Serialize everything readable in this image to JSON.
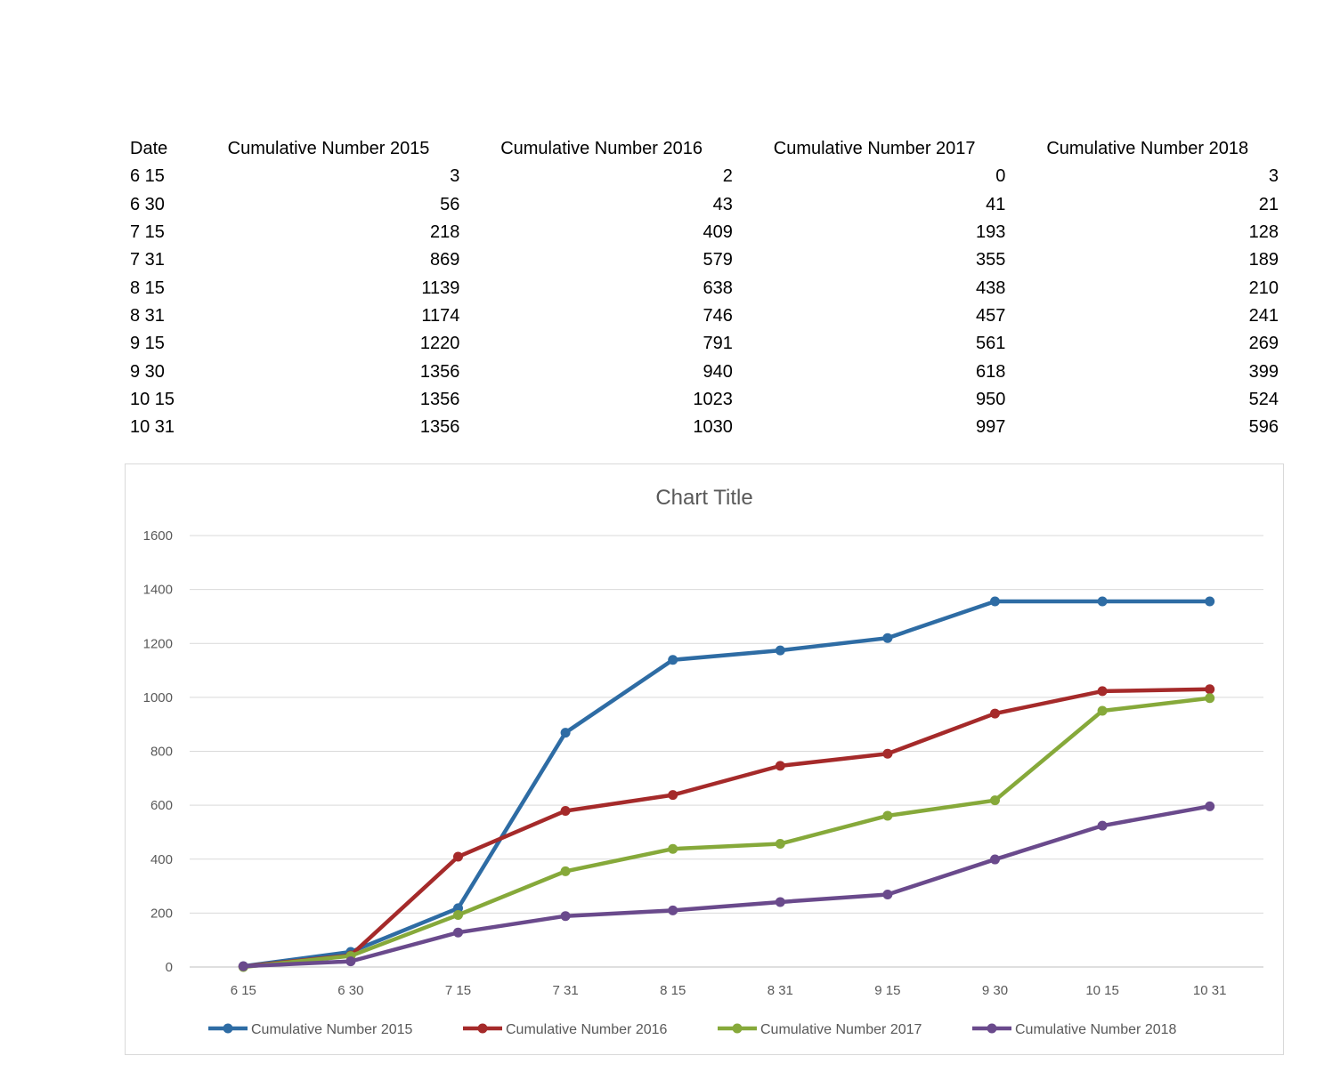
{
  "table": {
    "headers": [
      "Date",
      "Cumulative Number 2015",
      "Cumulative Number 2016",
      "Cumulative Number 2017",
      "Cumulative Number 2018"
    ],
    "rows": [
      [
        "6 15",
        "3",
        "2",
        "0",
        "3"
      ],
      [
        "6 30",
        "56",
        "43",
        "41",
        "21"
      ],
      [
        "7 15",
        "218",
        "409",
        "193",
        "128"
      ],
      [
        "7 31",
        "869",
        "579",
        "355",
        "189"
      ],
      [
        "8 15",
        "1139",
        "638",
        "438",
        "210"
      ],
      [
        "8 31",
        "1174",
        "746",
        "457",
        "241"
      ],
      [
        "9 15",
        "1220",
        "791",
        "561",
        "269"
      ],
      [
        "9 30",
        "1356",
        "940",
        "618",
        "399"
      ],
      [
        "10 15",
        "1356",
        "1023",
        "950",
        "524"
      ],
      [
        "10 31",
        "1356",
        "1030",
        "997",
        "596"
      ]
    ]
  },
  "chart_data": {
    "type": "line",
    "title": "Chart Title",
    "xlabel": "",
    "ylabel": "",
    "categories": [
      "6 15",
      "6 30",
      "7 15",
      "7 31",
      "8 15",
      "8 31",
      "9 15",
      "9 30",
      "10 15",
      "10 31"
    ],
    "ylim": [
      0,
      1600
    ],
    "yticks": [
      0,
      200,
      400,
      600,
      800,
      1000,
      1200,
      1400,
      1600
    ],
    "grid": true,
    "legend_position": "bottom",
    "series": [
      {
        "name": "Cumulative Number 2015",
        "color": "#2e6ca4",
        "values": [
          3,
          56,
          218,
          869,
          1139,
          1174,
          1220,
          1356,
          1356,
          1356
        ]
      },
      {
        "name": "Cumulative Number 2016",
        "color": "#a52a2a",
        "values": [
          2,
          43,
          409,
          579,
          638,
          746,
          791,
          940,
          1023,
          1030
        ]
      },
      {
        "name": "Cumulative Number 2017",
        "color": "#86a93a",
        "values": [
          0,
          41,
          193,
          355,
          438,
          457,
          561,
          618,
          950,
          997
        ]
      },
      {
        "name": "Cumulative Number 2018",
        "color": "#6a4a8c",
        "values": [
          3,
          21,
          128,
          189,
          210,
          241,
          269,
          399,
          524,
          596
        ]
      }
    ]
  }
}
